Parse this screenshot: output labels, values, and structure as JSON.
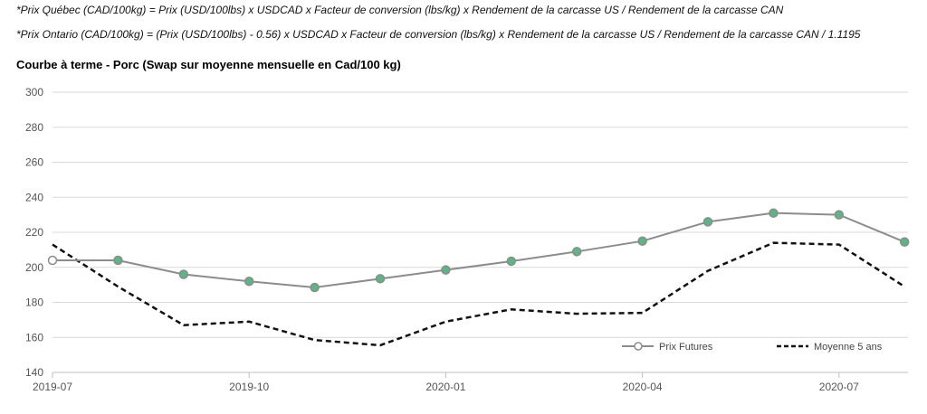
{
  "formulas": {
    "quebec": "*Prix Québec (CAD/100kg) = Prix (USD/100lbs) x USDCAD x Facteur de conversion (lbs/kg) x Rendement de la carcasse US / Rendement de la carcasse CAN",
    "ontario": "*Prix Ontario (CAD/100kg) = (Prix (USD/100lbs) - 0.56) x USDCAD x Facteur de conversion (lbs/kg) x Rendement de la carcasse US / Rendement de la carcasse CAN / 1.1195"
  },
  "chart_data": {
    "type": "line",
    "title": "Courbe à terme - Porc (Swap sur moyenne mensuelle en Cad/100 kg)",
    "xlabel": "",
    "ylabel": "",
    "ylim": [
      140,
      300
    ],
    "y_ticks": [
      140,
      160,
      180,
      200,
      220,
      240,
      260,
      280,
      300
    ],
    "grid": true,
    "legend_position": "bottom-right",
    "x": [
      "2019-07",
      "2019-08",
      "2019-09",
      "2019-10",
      "2019-11",
      "2019-12",
      "2020-01",
      "2020-02",
      "2020-03",
      "2020-04",
      "2020-05",
      "2020-06",
      "2020-07",
      "2020-08"
    ],
    "x_tick_labels": [
      "2019-07",
      "2019-10",
      "2020-01",
      "2020-04",
      "2020-07"
    ],
    "x_tick_indices": [
      0,
      3,
      6,
      9,
      12
    ],
    "series": [
      {
        "name": "Prix Futures",
        "style": "solid-markers",
        "color": "#8c8c8c",
        "marker_color": "#5bb584",
        "values": [
          204,
          204,
          196,
          192,
          188.5,
          193.5,
          198.5,
          203.5,
          209,
          215,
          226,
          231,
          230,
          214.5
        ]
      },
      {
        "name": "Moyenne 5 ans",
        "style": "dashed",
        "color": "#111111",
        "values": [
          213,
          189,
          167,
          169,
          158.5,
          155.5,
          169,
          176,
          173.5,
          174,
          198,
          214,
          213,
          189
        ]
      }
    ]
  }
}
